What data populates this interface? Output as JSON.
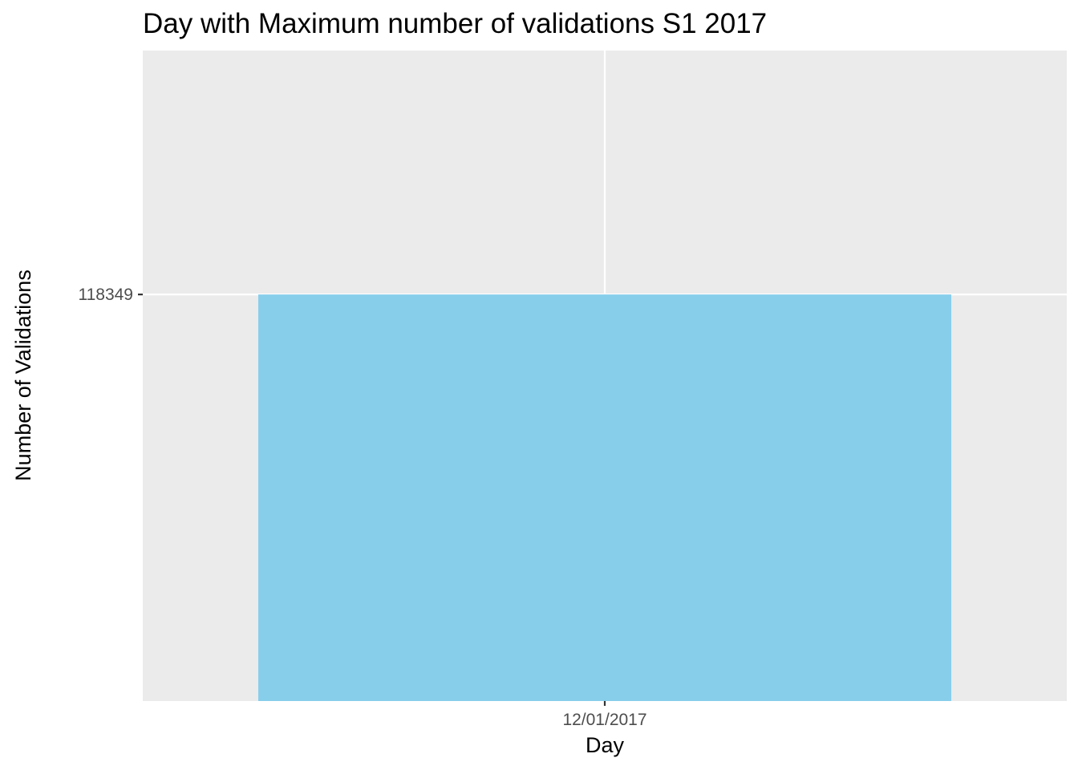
{
  "chart_data": {
    "type": "bar",
    "title": "Day with Maximum number of validations S1 2017",
    "xlabel": "Day",
    "ylabel": "Number of Validations",
    "categories": [
      "12/01/2017"
    ],
    "values": [
      118349
    ],
    "y_ticks": [
      118349
    ],
    "y_tick_labels": [
      "118349"
    ],
    "grid": true,
    "legend": "none",
    "colors": {
      "bar": "#87CEEB",
      "panel": "#EBEBEB",
      "grid": "#FFFFFF",
      "tick": "#333333"
    }
  }
}
